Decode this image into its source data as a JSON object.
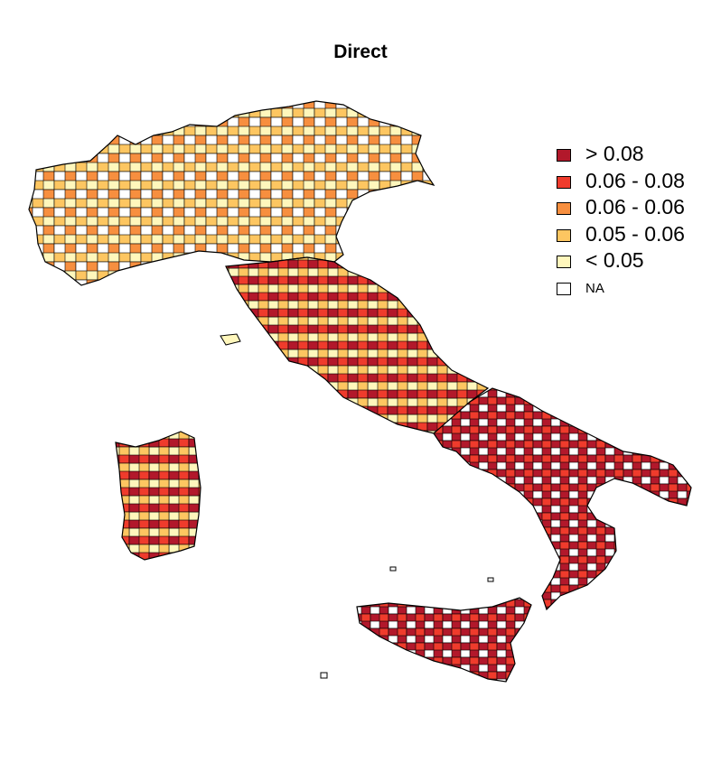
{
  "title": "Direct",
  "legend": [
    {
      "label": "> 0.08",
      "color": "#b2182b"
    },
    {
      "label": "0.06 - 0.08",
      "color": "#ef3b2c"
    },
    {
      "label": "0.06 - 0.06",
      "color": "#f78f3f"
    },
    {
      "label": "0.05 - 0.06",
      "color": "#fdc661"
    },
    {
      "label": "< 0.05",
      "color": "#fff7bc"
    },
    {
      "label": "NA",
      "color": "#ffffff"
    }
  ],
  "colors": {
    "border": "#000000"
  }
}
